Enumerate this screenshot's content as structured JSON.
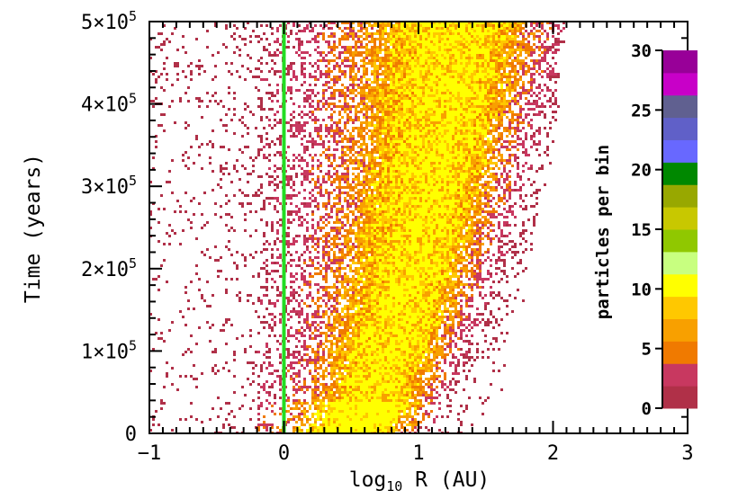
{
  "chart_data": {
    "type": "heatmap",
    "xlabel_main": "log",
    "xlabel_sub": "10",
    "xlabel_tail": " R (AU)",
    "ylabel": "Time (years)",
    "xlim": [
      -1,
      3
    ],
    "ylim": [
      0,
      500000
    ],
    "x_ticks": [
      {
        "value": -1,
        "label": "−1"
      },
      {
        "value": 0,
        "label": "0"
      },
      {
        "value": 1,
        "label": "1"
      },
      {
        "value": 2,
        "label": "2"
      },
      {
        "value": 3,
        "label": "3"
      }
    ],
    "y_ticks": [
      {
        "value": 0,
        "label": "0"
      },
      {
        "value": 100000,
        "mantissa": "1×10",
        "exponent": "5"
      },
      {
        "value": 200000,
        "mantissa": "2×10",
        "exponent": "5"
      },
      {
        "value": 300000,
        "mantissa": "3×10",
        "exponent": "5"
      },
      {
        "value": 400000,
        "mantissa": "4×10",
        "exponent": "5"
      },
      {
        "value": 500000,
        "mantissa": "5×10",
        "exponent": "5"
      }
    ],
    "reference_line": {
      "x": 0,
      "color": "#22dd22"
    },
    "colorbar": {
      "label": "particles per bin",
      "range": [
        0,
        30
      ],
      "tick_values": [
        0,
        5,
        10,
        15,
        20,
        25,
        30
      ],
      "tick_labels": [
        "0",
        "5",
        "10",
        "15",
        "20",
        "25",
        "30"
      ],
      "colors": [
        "#b03048",
        "#c83860",
        "#f07a00",
        "#f8a000",
        "#ffc800",
        "#ffff00",
        "#c8ff80",
        "#90c800",
        "#c8c800",
        "#98a800",
        "#008800",
        "#6868ff",
        "#6060c8",
        "#606090",
        "#c800c8",
        "#980098"
      ]
    }
  }
}
